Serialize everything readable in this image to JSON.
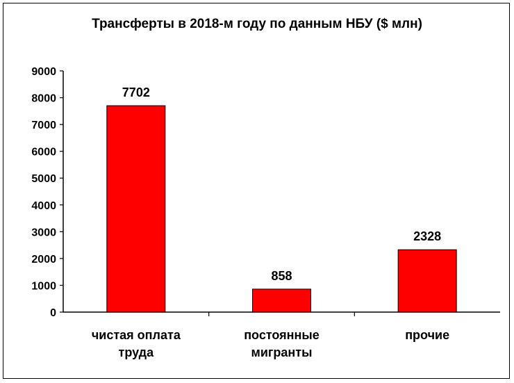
{
  "chart_data": {
    "type": "bar",
    "title": "Трансферты в 2018-м году по данным НБУ ($ млн)",
    "categories": [
      [
        "чистая оплата",
        "труда"
      ],
      [
        "постоянные",
        "мигранты"
      ],
      [
        "прочие"
      ]
    ],
    "values": [
      7702,
      858,
      2328
    ],
    "data_labels": [
      "7702",
      "858",
      "2328"
    ],
    "ylim": [
      0,
      9000
    ],
    "yticks": [
      "0",
      "1000",
      "2000",
      "3000",
      "4000",
      "5000",
      "6000",
      "7000",
      "8000",
      "9000"
    ],
    "grid": false,
    "legend": "none",
    "colors": {
      "bar": "#ff0000",
      "bar_edge": "#000000",
      "axis": "#000000"
    }
  }
}
